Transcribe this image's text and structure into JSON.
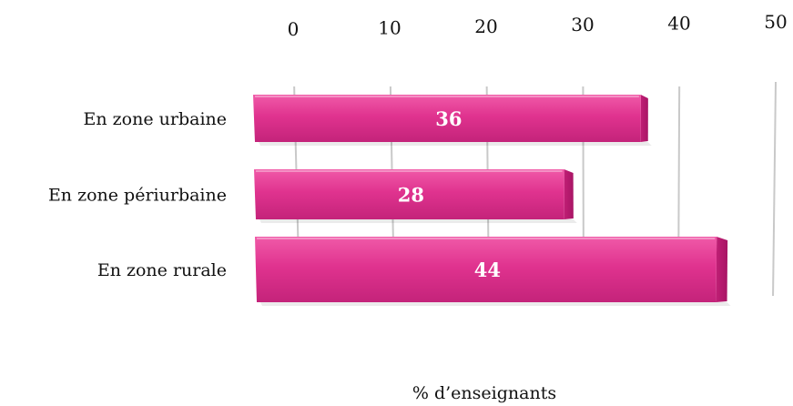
{
  "chart_data": {
    "type": "bar",
    "orientation": "horizontal",
    "categories": [
      "En zone urbaine",
      "En zone périurbaine",
      "En zone rurale"
    ],
    "values": [
      36,
      28,
      44
    ],
    "xlabel": "% d’enseignants",
    "ticks": [
      0,
      10,
      20,
      30,
      40,
      50
    ],
    "xlim": [
      0,
      50
    ],
    "grid": true,
    "legend": "none",
    "bar_color": "#e0338f",
    "data_labels": true
  }
}
